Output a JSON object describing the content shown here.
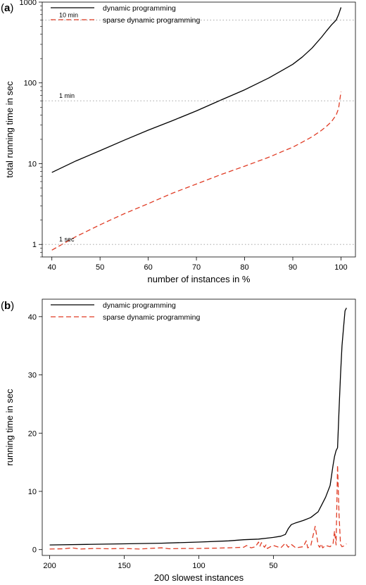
{
  "chart_data": [
    {
      "type": "line",
      "panel_label": "(a)",
      "xlabel": "number of instances in %",
      "ylabel": "total running time in sec",
      "xlim": [
        38,
        103
      ],
      "ylim": [
        0.7,
        1000
      ],
      "yscale": "log",
      "xticks": [
        40,
        50,
        60,
        70,
        80,
        90,
        100
      ],
      "yticks": [
        1,
        10,
        100,
        1000
      ],
      "legend_position": "top-left",
      "reference_lines": [
        {
          "y": 600,
          "label": "10 min"
        },
        {
          "y": 60,
          "label": "1 min"
        },
        {
          "y": 1,
          "label": "1 sec"
        }
      ],
      "series": [
        {
          "name": "dynamic programming",
          "color": "#000000",
          "dash": "solid",
          "x": [
            40,
            45,
            50,
            55,
            60,
            65,
            70,
            75,
            80,
            85,
            88,
            90,
            92,
            94,
            96,
            97,
            98,
            99,
            99.5,
            100
          ],
          "y": [
            7.8,
            10.8,
            14.5,
            19.5,
            26,
            34,
            45,
            61,
            82,
            115,
            145,
            170,
            210,
            270,
            370,
            440,
            520,
            600,
            700,
            860
          ]
        },
        {
          "name": "sparse dynamic programming",
          "color": "#e03c25",
          "dash": "dashed",
          "x": [
            40,
            45,
            50,
            55,
            60,
            65,
            70,
            75,
            80,
            85,
            88,
            90,
            92,
            94,
            96,
            97,
            98,
            99,
            99.5,
            100
          ],
          "y": [
            0.85,
            1.25,
            1.75,
            2.4,
            3.2,
            4.3,
            5.6,
            7.3,
            9.3,
            12,
            14.3,
            16,
            18.5,
            21.5,
            26,
            29,
            33,
            40,
            48,
            78
          ]
        }
      ]
    },
    {
      "type": "line",
      "panel_label": "(b)",
      "xlabel": "200 slowest instances",
      "ylabel": "running time in sec",
      "xlim": [
        205,
        -5
      ],
      "ylim": [
        -1,
        43
      ],
      "xticks": [
        200,
        150,
        100,
        50
      ],
      "yticks": [
        0,
        10,
        20,
        30,
        40
      ],
      "legend_position": "top-left",
      "series": [
        {
          "name": "dynamic programming",
          "color": "#000000",
          "dash": "solid",
          "x": [
            200,
            175,
            150,
            125,
            100,
            80,
            70,
            60,
            50,
            45,
            42,
            40,
            38,
            35,
            30,
            25,
            20,
            18,
            15,
            12,
            10,
            9,
            8,
            7,
            6,
            5,
            4,
            3,
            2,
            1
          ],
          "y": [
            0.8,
            0.9,
            1.0,
            1.1,
            1.3,
            1.5,
            1.7,
            1.8,
            2.1,
            2.3,
            2.6,
            3.6,
            4.3,
            4.6,
            5.0,
            5.5,
            6.5,
            7.5,
            9.0,
            11,
            14.5,
            16,
            17,
            17.5,
            24,
            30,
            35,
            38,
            41,
            41.5
          ]
        },
        {
          "name": "sparse dynamic programming",
          "color": "#e03c25",
          "dash": "dashed",
          "x": [
            200,
            190,
            185,
            180,
            170,
            160,
            150,
            140,
            130,
            125,
            120,
            110,
            100,
            90,
            80,
            70,
            68,
            65,
            62,
            60,
            59,
            58,
            56,
            55,
            54,
            52,
            50,
            45,
            42,
            40,
            38,
            35,
            30,
            28,
            27,
            25,
            22,
            20,
            19,
            18,
            17,
            15,
            12,
            10,
            9,
            8,
            7,
            6,
            5,
            4,
            3,
            2,
            1
          ],
          "y": [
            0.1,
            0.15,
            0.3,
            0.1,
            0.2,
            0.15,
            0.2,
            0.1,
            0.25,
            0.3,
            0.15,
            0.2,
            0.2,
            0.25,
            0.3,
            0.4,
            0.7,
            0.3,
            0.5,
            1.3,
            0.6,
            1.2,
            0.4,
            0.8,
            0.2,
            0.5,
            0.7,
            0.3,
            1.1,
            0.4,
            0.9,
            0.3,
            0.5,
            1.5,
            0.3,
            0.6,
            4.0,
            0.8,
            0.4,
            1.0,
            0.3,
            0.7,
            0.5,
            1.0,
            3.2,
            0.8,
            14.5,
            6.0,
            0.9,
            0.5,
            0.6,
            0.8,
            1.0
          ]
        }
      ]
    }
  ]
}
